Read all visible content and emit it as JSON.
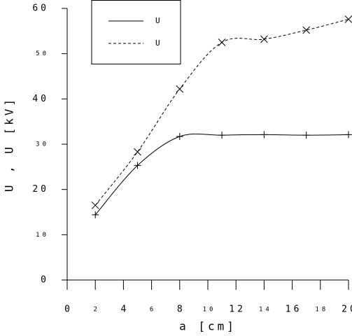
{
  "chart_data": {
    "type": "line",
    "x_label": "a [cm]",
    "y_label": "U , U [kV]",
    "x": [
      2,
      5,
      8,
      11,
      14,
      17,
      20
    ],
    "series": [
      {
        "name": "U",
        "color": "#000000",
        "dash": false,
        "marker": "+",
        "values": [
          14.4,
          25.3,
          31.7,
          32.0,
          32.1,
          32.0,
          32.1
        ]
      },
      {
        "name": "U",
        "color": "#000000",
        "dash": true,
        "marker": "x",
        "values": [
          16.5,
          28.3,
          42.2,
          52.5,
          53.2,
          55.2,
          57.6
        ]
      }
    ],
    "xlim": [
      0,
      20
    ],
    "xticks": [
      0,
      2,
      4,
      6,
      8,
      10,
      12,
      14,
      16,
      18,
      20
    ],
    "ylim": [
      0,
      60
    ],
    "yticks": [
      0,
      10,
      20,
      30,
      40,
      50,
      60
    ],
    "grid": false
  }
}
